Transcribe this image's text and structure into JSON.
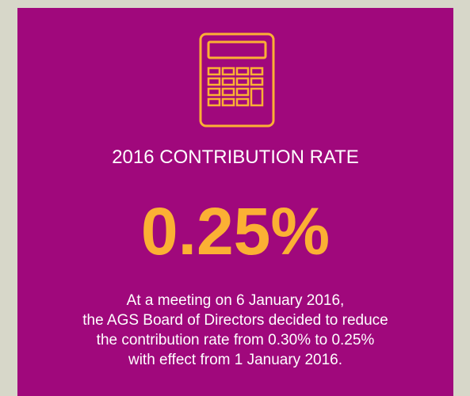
{
  "title": "2016 CONTRIBUTION RATE",
  "rate": "0.25%",
  "description": [
    "At a meeting on 6 January 2016,",
    "the AGS Board of Directors decided to reduce",
    "the contribution rate from 0.30% to 0.25%",
    "with effect from 1 January 2016."
  ]
}
